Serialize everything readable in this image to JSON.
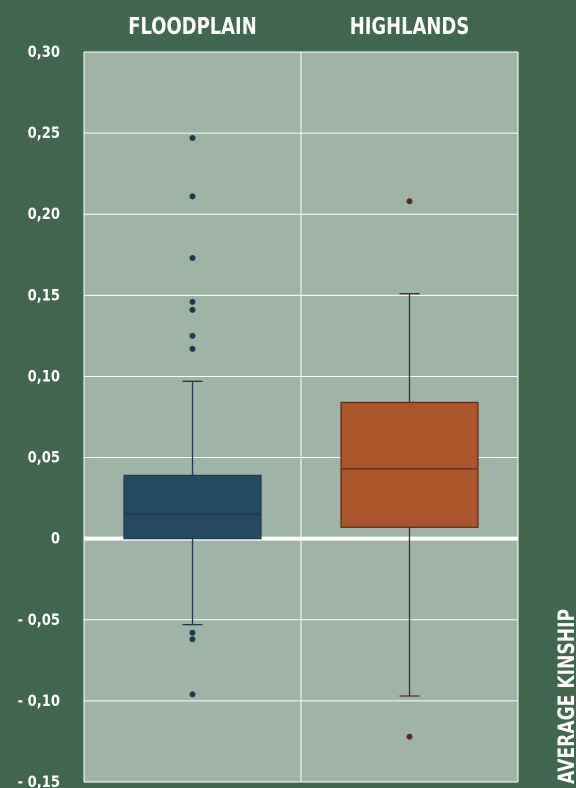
{
  "chart_data": {
    "type": "box",
    "categories": [
      "FLOODPLAIN",
      "HIGHLANDS"
    ],
    "ylabel": "AVERAGE KINSHIP",
    "ylim": [
      -0.15,
      0.3
    ],
    "yticks": [
      0.3,
      0.25,
      0.2,
      0.15,
      0.1,
      0.05,
      0,
      -0.05,
      -0.1,
      -0.15
    ],
    "ytick_labels": [
      "0,30",
      "0,25",
      "0,20",
      "0,15",
      "0,10",
      "0,05",
      "0",
      "- 0,05",
      "- 0,10",
      "- 0,15"
    ],
    "grid": true,
    "zero_line": true,
    "boxes": [
      {
        "category": "FLOODPLAIN",
        "color": "#264a62",
        "whisker_low": -0.053,
        "q1": 0.0,
        "median": 0.015,
        "q3": 0.039,
        "whisker_high": 0.097,
        "outliers": [
          0.247,
          0.211,
          0.173,
          0.146,
          0.141,
          0.125,
          0.117,
          -0.058,
          -0.062,
          -0.096
        ]
      },
      {
        "category": "HIGHLANDS",
        "color": "#aa552a",
        "whisker_low": -0.097,
        "q1": 0.007,
        "median": 0.043,
        "q3": 0.084,
        "whisker_high": 0.151,
        "outliers": [
          0.208,
          -0.122
        ]
      }
    ]
  },
  "colors": {
    "background": "#43664f",
    "plot_area": "#9fb4a6",
    "grid": "#ffffff",
    "whisker_floodplain": "#1e3a4f",
    "whisker_highlands": "#5a2a20"
  }
}
